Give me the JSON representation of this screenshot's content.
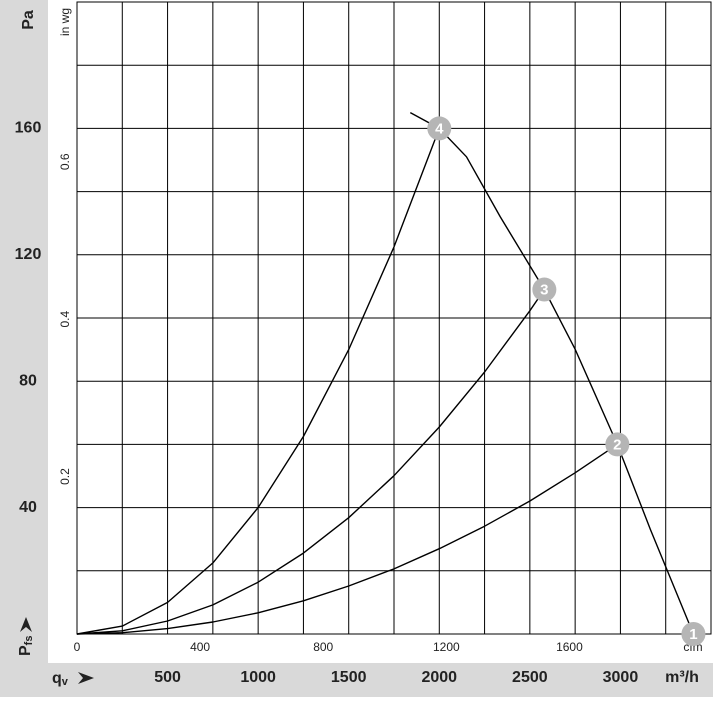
{
  "chart_data": {
    "type": "line",
    "y_label": "Pa",
    "y2_label": "in wg",
    "x_label": "m³/h",
    "x2_label": "cfm",
    "x_symbol": "q",
    "x_symbol_sub": "v",
    "y_symbol": "P",
    "y_symbol_sub": "fs",
    "xlim": [
      0,
      3500
    ],
    "ylim": [
      0,
      200
    ],
    "xticks": [
      500,
      1000,
      1500,
      2000,
      2500,
      3000
    ],
    "yticks": [
      40,
      80,
      120,
      160
    ],
    "x_gridlines": [
      250,
      500,
      750,
      1000,
      1250,
      1500,
      1750,
      2000,
      2250,
      2500,
      2750,
      3000,
      3250
    ],
    "y_gridlines": [
      20,
      40,
      60,
      80,
      100,
      120,
      140,
      160,
      180
    ],
    "x2lim": [
      0,
      2060
    ],
    "x2ticks": [
      0,
      400,
      800,
      1200,
      1600
    ],
    "y2lim": [
      0,
      0.803
    ],
    "y2ticks": [
      0.2,
      0.4,
      0.6
    ],
    "color": "#000000",
    "series": [
      {
        "x": [
          1840,
          2000,
          2150,
          2337,
          2580,
          2751,
          2983,
          3166,
          3403
        ],
        "values": [
          165,
          160,
          151,
          132,
          109,
          90,
          60,
          33,
          0
        ]
      },
      {
        "x": [
          0,
          250,
          500,
          750,
          1000,
          1250,
          1500,
          1750,
          2000
        ],
        "values": [
          0,
          2.5,
          10,
          22.5,
          40,
          62.5,
          90,
          122.5,
          160
        ]
      },
      {
        "x": [
          0,
          250,
          500,
          750,
          1000,
          1250,
          1500,
          1750,
          2000,
          2250,
          2500,
          2580
        ],
        "values": [
          0,
          1.0,
          4.1,
          9.2,
          16.4,
          25.6,
          36.8,
          50.1,
          65.5,
          82.9,
          102.3,
          109
        ]
      },
      {
        "x": [
          0,
          250,
          500,
          750,
          1000,
          1250,
          1500,
          1750,
          2000,
          2250,
          2500,
          2750,
          2983
        ],
        "values": [
          0,
          0.4,
          1.7,
          3.8,
          6.7,
          10.5,
          15.2,
          20.6,
          27.0,
          34.1,
          42.1,
          51.0,
          60
        ]
      }
    ],
    "operating_points": [
      {
        "label": "1",
        "x": 3403,
        "y": 0
      },
      {
        "label": "2",
        "x": 2983,
        "y": 60
      },
      {
        "label": "3",
        "x": 2580,
        "y": 109
      },
      {
        "label": "4",
        "x": 2000,
        "y": 160
      }
    ]
  }
}
